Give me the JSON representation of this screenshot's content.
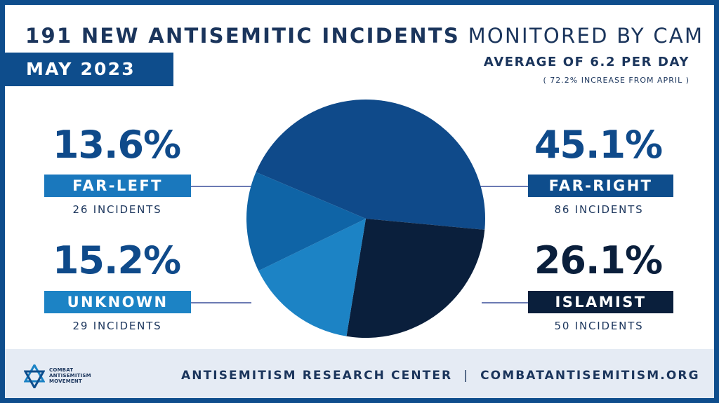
{
  "header": {
    "title_bold": "191 NEW ANTISEMITIC INCIDENTS",
    "title_light": "MONITORED BY CAM",
    "month": "MAY 2023",
    "average": "AVERAGE OF 6.2 PER DAY",
    "increase": "( 72.2% INCREASE FROM APRIL )"
  },
  "colors": {
    "frame": "#0e4d8c",
    "far_right": "#0f4a8a",
    "islamist": "#0a1f3c",
    "unknown": "#1c83c5",
    "far_left": "#0f64a6",
    "footer_band": "#e5ebf4",
    "text": "#1b355c"
  },
  "chart_data": {
    "type": "pie",
    "total": 191,
    "slices": [
      {
        "label": "FAR-RIGHT",
        "percent": 45.1,
        "percent_label": "45.1%",
        "count": 86,
        "count_label": "86 INCIDENTS",
        "color": "#0f4a8a"
      },
      {
        "label": "ISLAMIST",
        "percent": 26.1,
        "percent_label": "26.1%",
        "count": 50,
        "count_label": "50 INCIDENTS",
        "color": "#0a1f3c"
      },
      {
        "label": "UNKNOWN",
        "percent": 15.2,
        "percent_label": "15.2%",
        "count": 29,
        "count_label": "29 INCIDENTS",
        "color": "#1c83c5"
      },
      {
        "label": "FAR-LEFT",
        "percent": 13.6,
        "percent_label": "13.6%",
        "count": 26,
        "count_label": "26 INCIDENTS",
        "color": "#0f64a6"
      }
    ]
  },
  "footer": {
    "logo_text": [
      "COMBAT",
      "ANTISEMITISM",
      "MOVEMENT"
    ],
    "center": "ANTISEMITISM RESEARCH CENTER",
    "separator": "|",
    "site": "COMBATANTISEMITISM.ORG"
  }
}
